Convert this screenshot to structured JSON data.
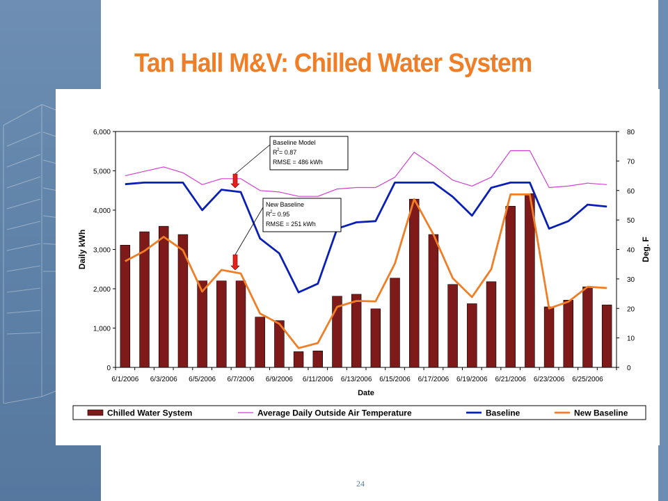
{
  "slide": {
    "title": "Tan Hall M&V: Chilled Water System",
    "page_number": "24"
  },
  "colors": {
    "title": "#f07e26",
    "bars": "#7f1a1a",
    "temperature": "#d040d0",
    "baseline": "#0a1fb5",
    "new_baseline": "#f07e26",
    "side_band": "#6e8fb3"
  },
  "annotations": [
    {
      "heading": "Baseline Model",
      "r2": "R",
      "r2_value": " = 0.87",
      "rmse": "RMSE = 486 kWh"
    },
    {
      "heading": "New Baseline",
      "r2": "R",
      "r2_value": " = 0.95",
      "rmse": "RMSE = 251 kWh"
    }
  ],
  "chart_data": {
    "type": "bar",
    "xlabel": "Date",
    "ylabel": "Daily kWh",
    "y2label": "Deg. F",
    "ylim": [
      0,
      6000
    ],
    "y2lim": [
      0,
      80
    ],
    "yticks": [
      "0",
      "1,000",
      "2,000",
      "3,000",
      "4,000",
      "5,000",
      "6,000"
    ],
    "y2ticks": [
      "0",
      "10",
      "20",
      "30",
      "40",
      "50",
      "60",
      "70",
      "80"
    ],
    "x": [
      "6/1/2006",
      "6/2/2006",
      "6/3/2006",
      "6/4/2006",
      "6/5/2006",
      "6/6/2006",
      "6/7/2006",
      "6/8/2006",
      "6/9/2006",
      "6/10/2006",
      "6/11/2006",
      "6/12/2006",
      "6/13/2006",
      "6/14/2006",
      "6/15/2006",
      "6/16/2006",
      "6/17/2006",
      "6/18/2006",
      "6/19/2006",
      "6/20/2006",
      "6/21/2006",
      "6/22/2006",
      "6/23/2006",
      "6/24/2006",
      "6/25/2006",
      "6/26/2006"
    ],
    "x_tick_labels": [
      "6/1/2006",
      "6/3/2006",
      "6/5/2006",
      "6/7/2006",
      "6/9/2006",
      "6/11/2006",
      "6/13/2006",
      "6/15/2006",
      "6/17/2006",
      "6/19/2006",
      "6/21/2006",
      "6/23/2006",
      "6/25/2006"
    ],
    "grid": false,
    "legend": "bottom",
    "series": [
      {
        "name": "Chilled Water System",
        "type": "bar",
        "axis": "left",
        "values": [
          3110,
          3450,
          3590,
          3380,
          2200,
          2200,
          2200,
          1280,
          1190,
          400,
          420,
          1810,
          1860,
          1490,
          2270,
          4280,
          3380,
          2110,
          1620,
          2180,
          4100,
          4420,
          1540,
          1710,
          2050,
          1590
        ]
      },
      {
        "name": "Average Daily Outside Air Temperature",
        "type": "line",
        "axis": "right",
        "values": [
          65,
          66.5,
          68,
          66,
          62,
          64,
          64,
          60,
          59.5,
          58,
          58,
          60.5,
          61,
          61,
          64.5,
          73,
          68.5,
          63.5,
          61.5,
          64.5,
          73.5,
          73.5,
          61,
          61.5,
          62.5,
          62
        ]
      },
      {
        "name": "Baseline",
        "type": "line",
        "axis": "left",
        "values": [
          4660,
          4700,
          4700,
          4700,
          4000,
          4520,
          4460,
          3280,
          2900,
          1910,
          2130,
          3530,
          3690,
          3720,
          4700,
          4700,
          4700,
          4340,
          3860,
          4570,
          4700,
          4700,
          3530,
          3720,
          4140,
          4090
        ]
      },
      {
        "name": "New Baseline",
        "type": "line",
        "axis": "left",
        "values": [
          2700,
          2960,
          3320,
          2980,
          1930,
          2480,
          2390,
          1370,
          1110,
          490,
          620,
          1540,
          1690,
          1680,
          2640,
          4280,
          3380,
          2270,
          1790,
          2500,
          4400,
          4400,
          1500,
          1670,
          2050,
          2020
        ]
      }
    ]
  }
}
